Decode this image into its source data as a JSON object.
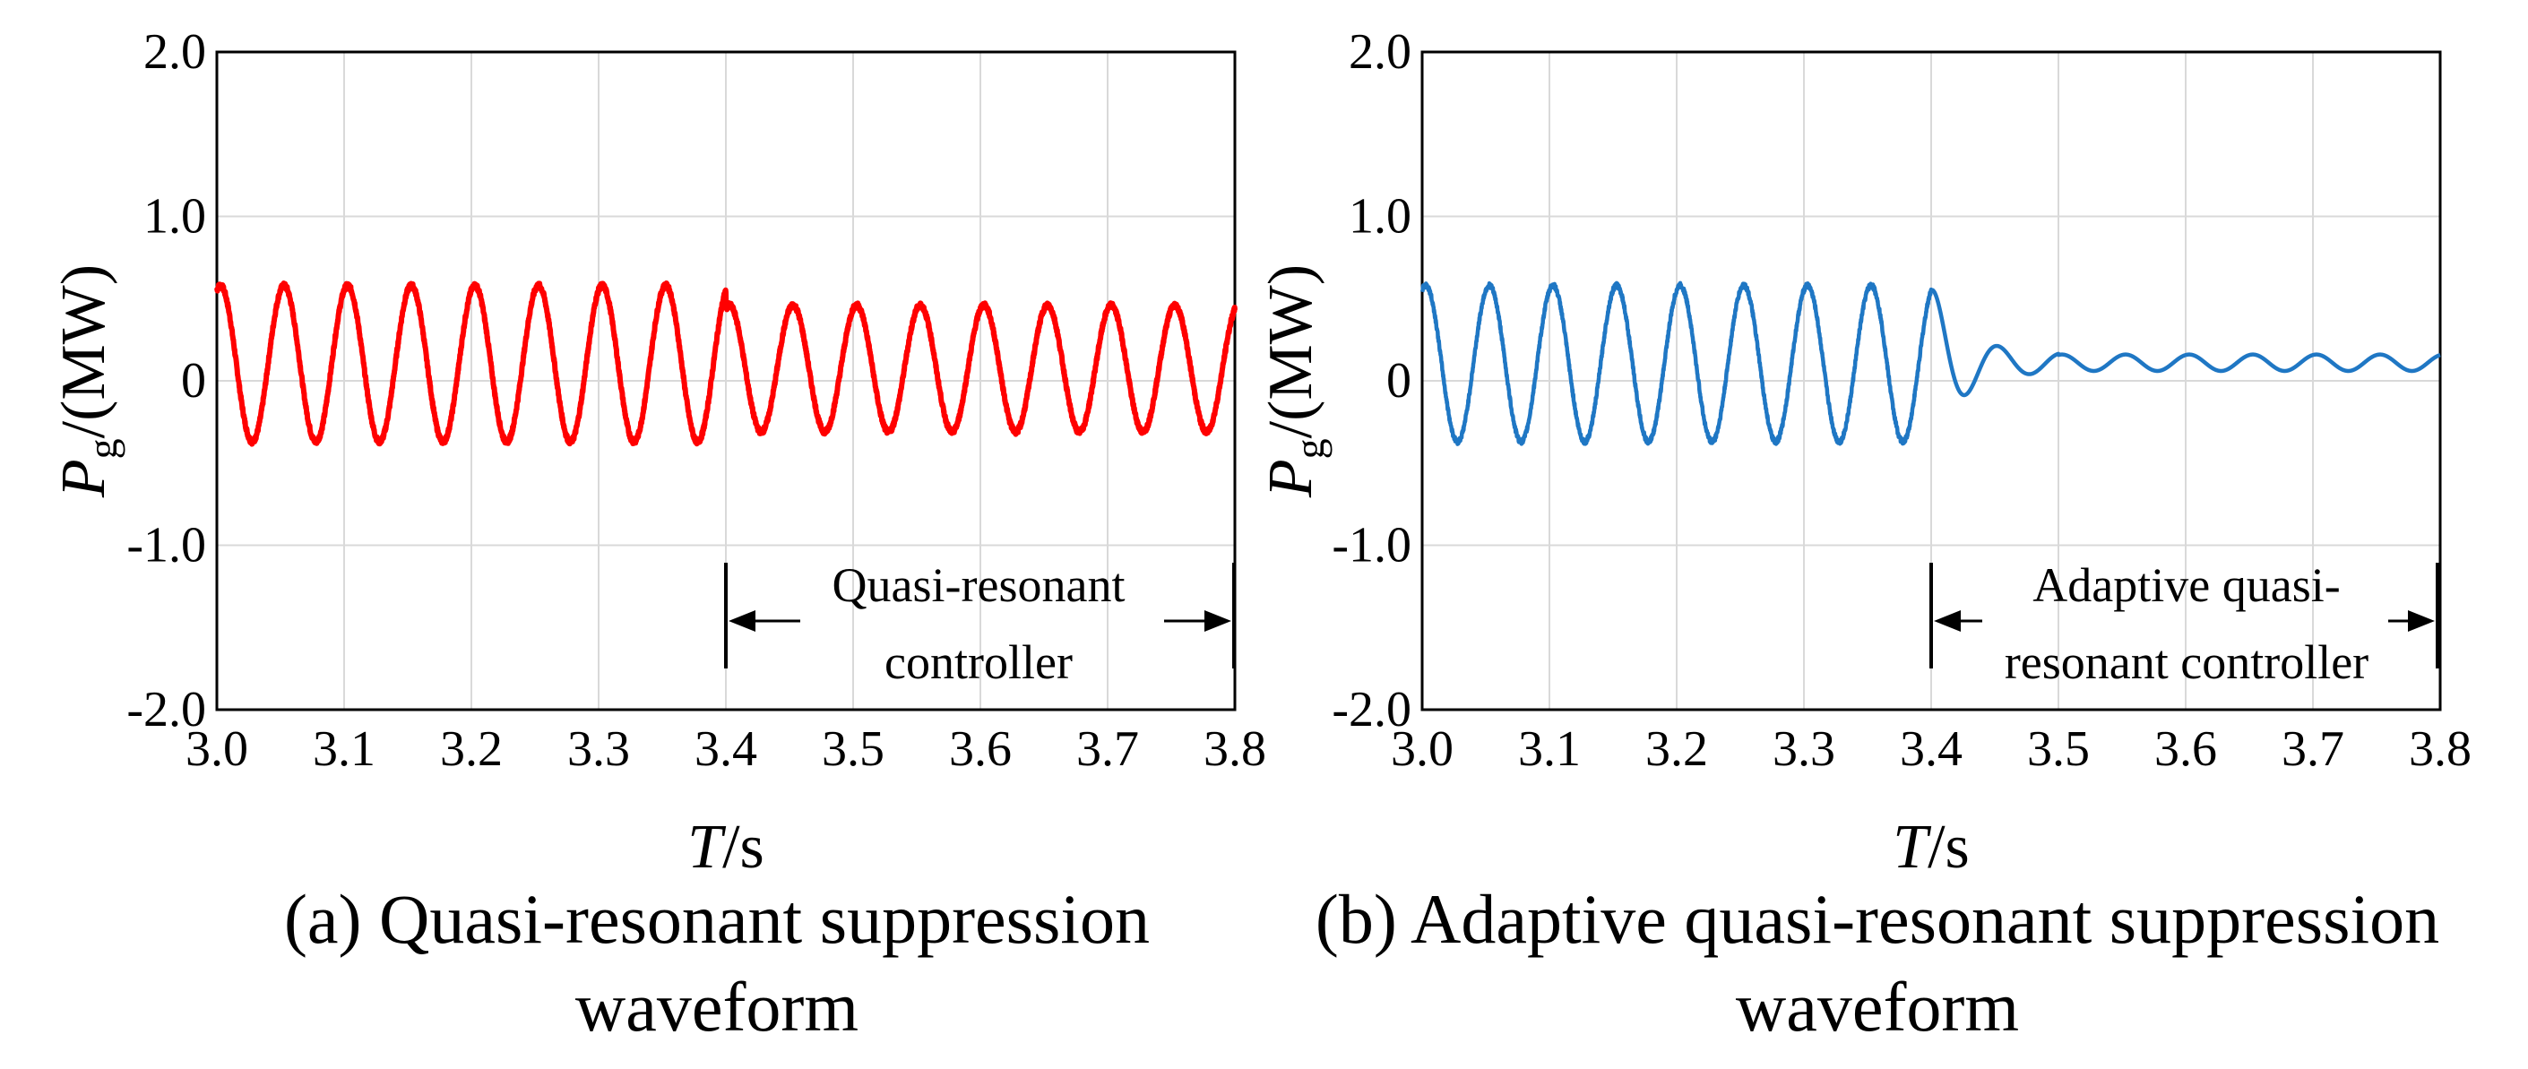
{
  "chart_data": [
    {
      "type": "line",
      "panel_id": "a",
      "title": "",
      "caption_line1": "(a) Quasi-resonant suppression",
      "caption_line2": "waveform",
      "ylabel_main": "P",
      "ylabel_sub": "g",
      "ylabel_unit": "/(MW)",
      "xlabel_main": "T",
      "xlabel_unit": "/s",
      "xlim": [
        3.0,
        3.8
      ],
      "ylim": [
        -2.0,
        2.0
      ],
      "grid": true,
      "xticks": [
        3.0,
        3.1,
        3.2,
        3.3,
        3.4,
        3.5,
        3.6,
        3.7,
        3.8
      ],
      "xtick_labels": [
        "3.0",
        "3.1",
        "3.2",
        "3.3",
        "3.4",
        "3.5",
        "3.6",
        "3.7",
        "3.8"
      ],
      "yticks": [
        2.0,
        1.0,
        0,
        -1.0,
        -2.0
      ],
      "ytick_labels": [
        "2.0",
        "1.0",
        "0",
        "-1.0",
        "-2.0"
      ],
      "annotation_line1": "Quasi-resonant",
      "annotation_line2": "controller",
      "annotation_span": [
        3.4,
        3.8
      ],
      "series": [
        {
          "name": "Pg",
          "color": "#ff0000",
          "frequency_hz": 20,
          "segments": [
            {
              "t_start": 3.0,
              "t_end": 3.4,
              "max": 0.58,
              "min": -0.37
            },
            {
              "t_start": 3.4,
              "t_end": 3.8,
              "max": 0.46,
              "min": -0.31
            }
          ]
        }
      ]
    },
    {
      "type": "line",
      "panel_id": "b",
      "title": "",
      "caption_line1": "(b) Adaptive quasi-resonant suppression",
      "caption_line2": "waveform",
      "ylabel_main": "P",
      "ylabel_sub": "g",
      "ylabel_unit": "/(MW)",
      "xlabel_main": "T",
      "xlabel_unit": "/s",
      "xlim": [
        3.0,
        3.8
      ],
      "ylim": [
        -2.0,
        2.0
      ],
      "grid": true,
      "xticks": [
        3.0,
        3.1,
        3.2,
        3.3,
        3.4,
        3.5,
        3.6,
        3.7,
        3.8
      ],
      "xtick_labels": [
        "3.0",
        "3.1",
        "3.2",
        "3.3",
        "3.4",
        "3.5",
        "3.6",
        "3.7",
        "3.8"
      ],
      "yticks": [
        2.0,
        1.0,
        0,
        -1.0,
        -2.0
      ],
      "ytick_labels": [
        "2.0",
        "1.0",
        "0",
        "-1.0",
        "-2.0"
      ],
      "annotation_line1": "Adaptive quasi-",
      "annotation_line2": "resonant controller",
      "annotation_span": [
        3.4,
        3.8
      ],
      "series": [
        {
          "name": "Pg",
          "color": "#1f77c4",
          "frequency_hz": 20,
          "segments": [
            {
              "t_start": 3.0,
              "t_end": 3.4,
              "max": 0.58,
              "min": -0.37
            },
            {
              "t_start": 3.4,
              "t_end": 3.5,
              "decay_to_center": 0.11,
              "decay_to_amplitude": 0.05
            },
            {
              "t_start": 3.5,
              "t_end": 3.8,
              "max": 0.16,
              "min": 0.06
            }
          ]
        }
      ]
    }
  ]
}
